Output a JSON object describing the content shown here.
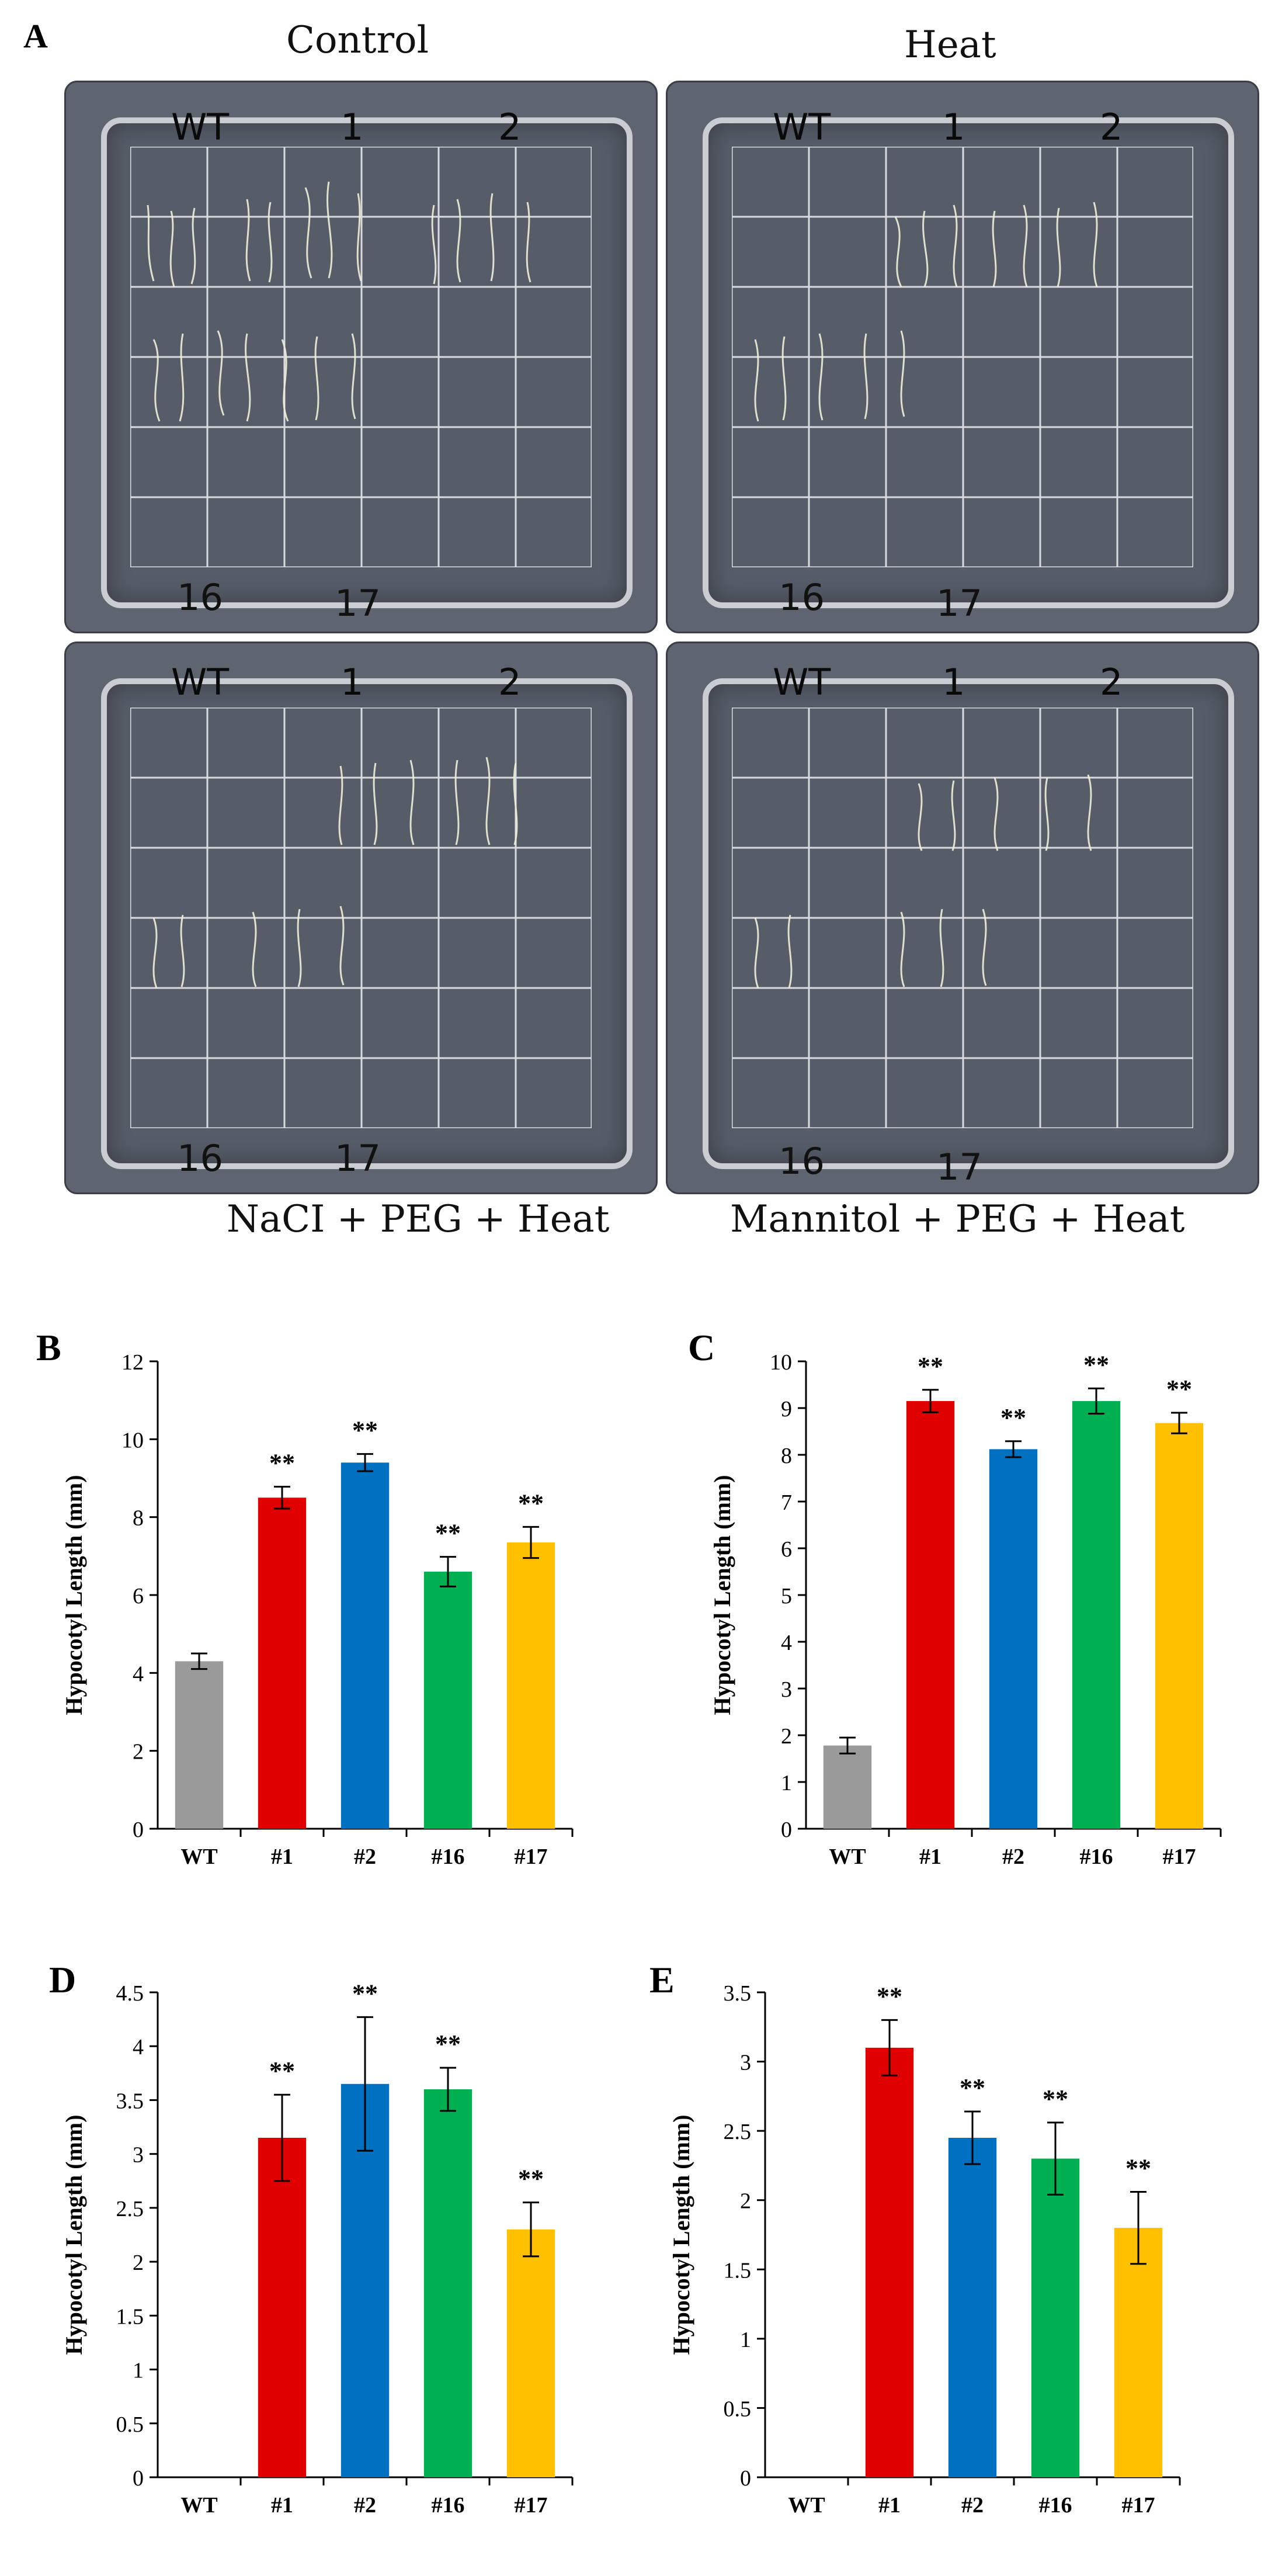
{
  "figure": {
    "panel_a_letter": "A",
    "plates": [
      {
        "condition": "Control",
        "top_labels": [
          "WT",
          "1",
          "2"
        ],
        "bottom_labels": [
          "16",
          "17"
        ]
      },
      {
        "condition": "Heat",
        "top_labels": [
          "WT",
          "1",
          "2"
        ],
        "bottom_labels": [
          "16",
          "17"
        ]
      },
      {
        "condition": "NaCI + PEG + Heat",
        "top_labels": [
          "WT",
          "1",
          "2"
        ],
        "bottom_labels": [
          "16",
          "17"
        ]
      },
      {
        "condition": "Mannitol + PEG + Heat",
        "top_labels": [
          "WT",
          "1",
          "2"
        ],
        "bottom_labels": [
          "16",
          "17"
        ]
      }
    ]
  },
  "colors": {
    "WT": "#9a9a9a",
    "#1": "#e00000",
    "#2": "#0070c0",
    "#16": "#00b050",
    "#17": "#ffc000"
  },
  "chart_data": [
    {
      "panel": "B",
      "type": "bar",
      "title": "",
      "xlabel": "",
      "ylabel": "Hypocotyl Length (mm)",
      "categories": [
        "WT",
        "#1",
        "#2",
        "#16",
        "#17"
      ],
      "values": [
        4.3,
        8.5,
        9.4,
        6.6,
        7.35
      ],
      "errors": [
        0.2,
        0.28,
        0.22,
        0.38,
        0.4
      ],
      "significance": [
        "",
        "**",
        "**",
        "**",
        "**"
      ],
      "ylim": [
        0,
        12
      ],
      "yticks": [
        "0",
        "2",
        "4",
        "6",
        "8",
        "10",
        "12"
      ]
    },
    {
      "panel": "C",
      "type": "bar",
      "title": "",
      "xlabel": "",
      "ylabel": "Hypocotyl Length (mm)",
      "categories": [
        "WT",
        "#1",
        "#2",
        "#16",
        "#17"
      ],
      "values": [
        1.78,
        9.15,
        8.12,
        9.15,
        8.68
      ],
      "errors": [
        0.17,
        0.24,
        0.17,
        0.27,
        0.22
      ],
      "significance": [
        "",
        "**",
        "**",
        "**",
        "**"
      ],
      "ylim": [
        0,
        10
      ],
      "yticks": [
        "0",
        "1",
        "2",
        "3",
        "4",
        "5",
        "6",
        "7",
        "8",
        "9",
        "10"
      ]
    },
    {
      "panel": "D",
      "type": "bar",
      "title": "",
      "xlabel": "",
      "ylabel": "Hypocotyl Length (mm)",
      "categories": [
        "WT",
        "#1",
        "#2",
        "#16",
        "#17"
      ],
      "values": [
        0,
        3.15,
        3.65,
        3.6,
        2.3
      ],
      "errors": [
        0,
        0.4,
        0.62,
        0.2,
        0.25
      ],
      "significance": [
        "",
        "**",
        "**",
        "**",
        "**"
      ],
      "ylim": [
        0,
        4.5
      ],
      "yticks": [
        "0",
        "0.5",
        "1",
        "1.5",
        "2",
        "2.5",
        "3",
        "3.5",
        "4",
        "4.5"
      ]
    },
    {
      "panel": "E",
      "type": "bar",
      "title": "",
      "xlabel": "",
      "ylabel": "Hypocotyl Length (mm)",
      "categories": [
        "WT",
        "#1",
        "#2",
        "#16",
        "#17"
      ],
      "values": [
        0,
        3.1,
        2.45,
        2.3,
        1.8
      ],
      "errors": [
        0,
        0.2,
        0.19,
        0.26,
        0.26
      ],
      "significance": [
        "",
        "**",
        "**",
        "**",
        "**"
      ],
      "ylim": [
        0,
        3.5
      ],
      "yticks": [
        "0",
        "0.5",
        "1",
        "1.5",
        "2",
        "2.5",
        "3",
        "3.5"
      ]
    }
  ]
}
